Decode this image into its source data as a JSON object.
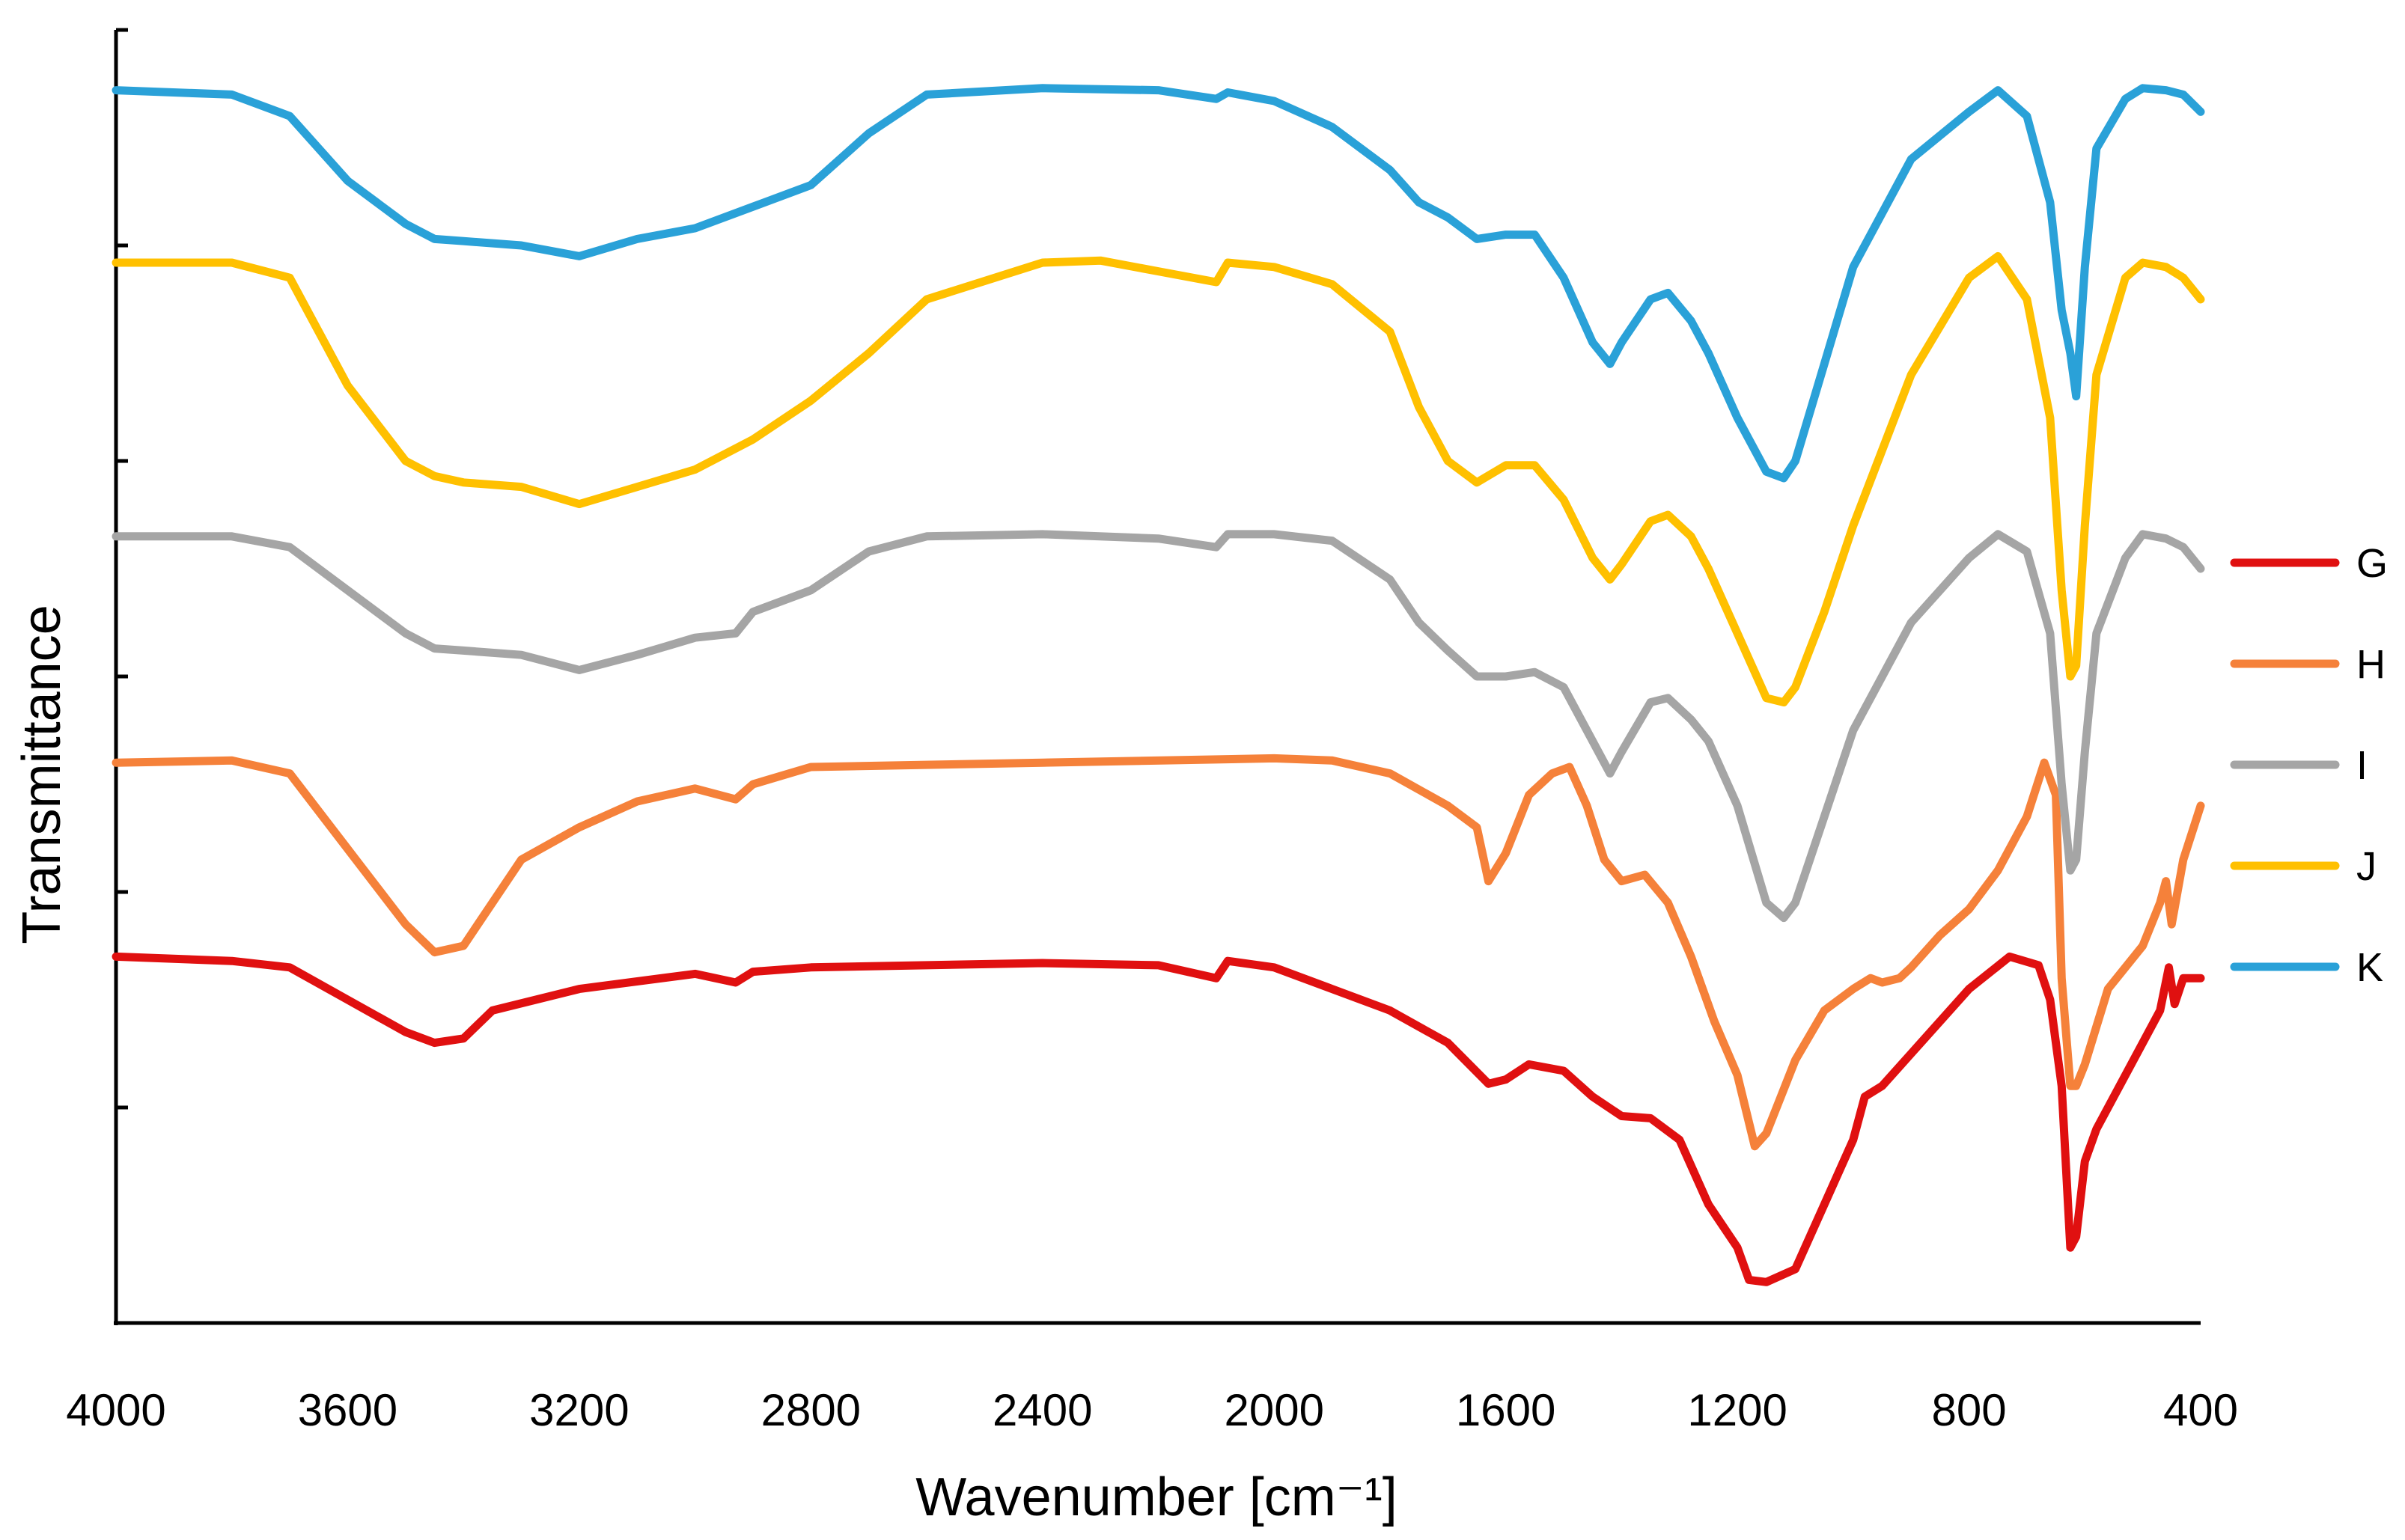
{
  "chart_data": {
    "type": "line",
    "title": "",
    "xlabel": "Wavenumber [cm⁻¹]",
    "ylabel": "Transmittance",
    "xlim": [
      4000,
      400
    ],
    "x_reversed": true,
    "ylim": [
      0,
      6
    ],
    "y_ticks": [
      0,
      1,
      2,
      3,
      4,
      5,
      6
    ],
    "y_tick_labels_visible": false,
    "x_ticks": [
      4000,
      3600,
      3200,
      2800,
      2400,
      2000,
      1600,
      1200,
      800,
      400
    ],
    "x_tick_labels": [
      "4000",
      "3600",
      "3200",
      "2800",
      "2400",
      "2000",
      "1600",
      "1200",
      "800",
      "400"
    ],
    "grid": false,
    "legend_position": "right",
    "series": [
      {
        "name": "G",
        "color": "#e01010",
        "points": [
          [
            4000,
            1.7
          ],
          [
            3800,
            1.68
          ],
          [
            3700,
            1.65
          ],
          [
            3600,
            1.5
          ],
          [
            3500,
            1.35
          ],
          [
            3450,
            1.3
          ],
          [
            3400,
            1.32
          ],
          [
            3350,
            1.45
          ],
          [
            3200,
            1.55
          ],
          [
            3000,
            1.62
          ],
          [
            2930,
            1.58
          ],
          [
            2900,
            1.63
          ],
          [
            2800,
            1.65
          ],
          [
            2400,
            1.67
          ],
          [
            2200,
            1.66
          ],
          [
            2100,
            1.6
          ],
          [
            2080,
            1.68
          ],
          [
            2000,
            1.65
          ],
          [
            1900,
            1.55
          ],
          [
            1800,
            1.45
          ],
          [
            1700,
            1.3
          ],
          [
            1630,
            1.11
          ],
          [
            1600,
            1.13
          ],
          [
            1560,
            1.2
          ],
          [
            1500,
            1.17
          ],
          [
            1450,
            1.05
          ],
          [
            1400,
            0.96
          ],
          [
            1350,
            0.95
          ],
          [
            1300,
            0.85
          ],
          [
            1250,
            0.55
          ],
          [
            1200,
            0.35
          ],
          [
            1180,
            0.2
          ],
          [
            1150,
            0.19
          ],
          [
            1100,
            0.25
          ],
          [
            1050,
            0.55
          ],
          [
            1000,
            0.85
          ],
          [
            980,
            1.05
          ],
          [
            950,
            1.1
          ],
          [
            900,
            1.25
          ],
          [
            800,
            1.55
          ],
          [
            730,
            1.7
          ],
          [
            680,
            1.66
          ],
          [
            660,
            1.5
          ],
          [
            640,
            1.1
          ],
          [
            625,
            0.35
          ],
          [
            615,
            0.4
          ],
          [
            600,
            0.75
          ],
          [
            580,
            0.9
          ],
          [
            520,
            1.2
          ],
          [
            470,
            1.45
          ],
          [
            455,
            1.65
          ],
          [
            445,
            1.48
          ],
          [
            430,
            1.6
          ],
          [
            400,
            1.6
          ]
        ]
      },
      {
        "name": "H",
        "color": "#f5813a",
        "points": [
          [
            4000,
            2.6
          ],
          [
            3800,
            2.61
          ],
          [
            3700,
            2.55
          ],
          [
            3600,
            2.2
          ],
          [
            3500,
            1.85
          ],
          [
            3450,
            1.72
          ],
          [
            3400,
            1.75
          ],
          [
            3350,
            1.95
          ],
          [
            3300,
            2.15
          ],
          [
            3200,
            2.3
          ],
          [
            3100,
            2.42
          ],
          [
            3000,
            2.48
          ],
          [
            2930,
            2.43
          ],
          [
            2900,
            2.5
          ],
          [
            2800,
            2.58
          ],
          [
            2400,
            2.6
          ],
          [
            2000,
            2.62
          ],
          [
            1900,
            2.61
          ],
          [
            1800,
            2.55
          ],
          [
            1700,
            2.4
          ],
          [
            1650,
            2.3
          ],
          [
            1630,
            2.05
          ],
          [
            1600,
            2.18
          ],
          [
            1560,
            2.45
          ],
          [
            1520,
            2.55
          ],
          [
            1490,
            2.58
          ],
          [
            1460,
            2.4
          ],
          [
            1430,
            2.15
          ],
          [
            1400,
            2.05
          ],
          [
            1360,
            2.08
          ],
          [
            1320,
            1.95
          ],
          [
            1280,
            1.7
          ],
          [
            1240,
            1.4
          ],
          [
            1200,
            1.15
          ],
          [
            1170,
            0.82
          ],
          [
            1150,
            0.88
          ],
          [
            1100,
            1.22
          ],
          [
            1050,
            1.45
          ],
          [
            1000,
            1.55
          ],
          [
            970,
            1.6
          ],
          [
            950,
            1.58
          ],
          [
            920,
            1.6
          ],
          [
            900,
            1.65
          ],
          [
            850,
            1.8
          ],
          [
            800,
            1.92
          ],
          [
            750,
            2.1
          ],
          [
            700,
            2.35
          ],
          [
            670,
            2.6
          ],
          [
            650,
            2.45
          ],
          [
            640,
            1.6
          ],
          [
            625,
            1.1
          ],
          [
            615,
            1.1
          ],
          [
            600,
            1.2
          ],
          [
            560,
            1.55
          ],
          [
            500,
            1.75
          ],
          [
            470,
            1.95
          ],
          [
            460,
            2.05
          ],
          [
            450,
            1.85
          ],
          [
            430,
            2.15
          ],
          [
            400,
            2.4
          ]
        ]
      },
      {
        "name": "I",
        "color": "#a5a5a5",
        "points": [
          [
            4000,
            3.65
          ],
          [
            3800,
            3.65
          ],
          [
            3700,
            3.6
          ],
          [
            3600,
            3.4
          ],
          [
            3500,
            3.2
          ],
          [
            3450,
            3.13
          ],
          [
            3400,
            3.12
          ],
          [
            3300,
            3.1
          ],
          [
            3200,
            3.03
          ],
          [
            3100,
            3.1
          ],
          [
            3000,
            3.18
          ],
          [
            2930,
            3.2
          ],
          [
            2900,
            3.3
          ],
          [
            2800,
            3.4
          ],
          [
            2700,
            3.58
          ],
          [
            2600,
            3.65
          ],
          [
            2400,
            3.66
          ],
          [
            2200,
            3.64
          ],
          [
            2100,
            3.6
          ],
          [
            2080,
            3.66
          ],
          [
            2000,
            3.66
          ],
          [
            1900,
            3.63
          ],
          [
            1800,
            3.45
          ],
          [
            1750,
            3.25
          ],
          [
            1700,
            3.12
          ],
          [
            1650,
            3.0
          ],
          [
            1600,
            3.0
          ],
          [
            1550,
            3.02
          ],
          [
            1500,
            2.95
          ],
          [
            1450,
            2.7
          ],
          [
            1420,
            2.55
          ],
          [
            1400,
            2.65
          ],
          [
            1350,
            2.88
          ],
          [
            1320,
            2.9
          ],
          [
            1280,
            2.8
          ],
          [
            1250,
            2.7
          ],
          [
            1200,
            2.4
          ],
          [
            1150,
            1.95
          ],
          [
            1120,
            1.88
          ],
          [
            1100,
            1.95
          ],
          [
            1050,
            2.35
          ],
          [
            1000,
            2.75
          ],
          [
            900,
            3.25
          ],
          [
            800,
            3.55
          ],
          [
            750,
            3.66
          ],
          [
            700,
            3.58
          ],
          [
            660,
            3.2
          ],
          [
            640,
            2.5
          ],
          [
            625,
            2.1
          ],
          [
            615,
            2.15
          ],
          [
            600,
            2.65
          ],
          [
            580,
            3.2
          ],
          [
            530,
            3.55
          ],
          [
            500,
            3.66
          ],
          [
            460,
            3.64
          ],
          [
            430,
            3.6
          ],
          [
            400,
            3.5
          ]
        ]
      },
      {
        "name": "J",
        "color": "#ffc000",
        "points": [
          [
            4000,
            4.92
          ],
          [
            3800,
            4.92
          ],
          [
            3700,
            4.85
          ],
          [
            3600,
            4.35
          ],
          [
            3500,
            4.0
          ],
          [
            3450,
            3.93
          ],
          [
            3400,
            3.9
          ],
          [
            3300,
            3.88
          ],
          [
            3200,
            3.8
          ],
          [
            3100,
            3.88
          ],
          [
            3000,
            3.96
          ],
          [
            2900,
            4.1
          ],
          [
            2800,
            4.28
          ],
          [
            2700,
            4.5
          ],
          [
            2600,
            4.75
          ],
          [
            2400,
            4.92
          ],
          [
            2300,
            4.93
          ],
          [
            2200,
            4.88
          ],
          [
            2100,
            4.83
          ],
          [
            2080,
            4.92
          ],
          [
            2000,
            4.9
          ],
          [
            1900,
            4.82
          ],
          [
            1800,
            4.6
          ],
          [
            1750,
            4.25
          ],
          [
            1700,
            4.0
          ],
          [
            1650,
            3.9
          ],
          [
            1600,
            3.98
          ],
          [
            1550,
            3.98
          ],
          [
            1500,
            3.82
          ],
          [
            1450,
            3.55
          ],
          [
            1420,
            3.45
          ],
          [
            1400,
            3.52
          ],
          [
            1350,
            3.72
          ],
          [
            1320,
            3.75
          ],
          [
            1280,
            3.65
          ],
          [
            1250,
            3.5
          ],
          [
            1200,
            3.2
          ],
          [
            1150,
            2.9
          ],
          [
            1120,
            2.88
          ],
          [
            1100,
            2.95
          ],
          [
            1050,
            3.3
          ],
          [
            1000,
            3.7
          ],
          [
            900,
            4.4
          ],
          [
            800,
            4.85
          ],
          [
            750,
            4.95
          ],
          [
            700,
            4.75
          ],
          [
            660,
            4.2
          ],
          [
            640,
            3.4
          ],
          [
            625,
            3.0
          ],
          [
            615,
            3.05
          ],
          [
            600,
            3.7
          ],
          [
            580,
            4.4
          ],
          [
            530,
            4.85
          ],
          [
            500,
            4.92
          ],
          [
            460,
            4.9
          ],
          [
            430,
            4.85
          ],
          [
            400,
            4.75
          ]
        ]
      },
      {
        "name": "K",
        "color": "#2aa1d8",
        "points": [
          [
            4000,
            5.72
          ],
          [
            3800,
            5.7
          ],
          [
            3700,
            5.6
          ],
          [
            3600,
            5.3
          ],
          [
            3500,
            5.1
          ],
          [
            3450,
            5.03
          ],
          [
            3400,
            5.02
          ],
          [
            3300,
            5.0
          ],
          [
            3200,
            4.95
          ],
          [
            3100,
            5.03
          ],
          [
            3000,
            5.08
          ],
          [
            2900,
            5.18
          ],
          [
            2800,
            5.28
          ],
          [
            2700,
            5.52
          ],
          [
            2600,
            5.7
          ],
          [
            2400,
            5.73
          ],
          [
            2200,
            5.72
          ],
          [
            2100,
            5.68
          ],
          [
            2080,
            5.71
          ],
          [
            2000,
            5.67
          ],
          [
            1900,
            5.55
          ],
          [
            1800,
            5.35
          ],
          [
            1750,
            5.2
          ],
          [
            1700,
            5.13
          ],
          [
            1650,
            5.03
          ],
          [
            1600,
            5.05
          ],
          [
            1550,
            5.05
          ],
          [
            1500,
            4.85
          ],
          [
            1450,
            4.55
          ],
          [
            1420,
            4.45
          ],
          [
            1400,
            4.55
          ],
          [
            1350,
            4.75
          ],
          [
            1320,
            4.78
          ],
          [
            1280,
            4.65
          ],
          [
            1250,
            4.5
          ],
          [
            1200,
            4.2
          ],
          [
            1150,
            3.95
          ],
          [
            1120,
            3.92
          ],
          [
            1100,
            4.0
          ],
          [
            1050,
            4.45
          ],
          [
            1000,
            4.9
          ],
          [
            900,
            5.4
          ],
          [
            800,
            5.62
          ],
          [
            750,
            5.72
          ],
          [
            700,
            5.6
          ],
          [
            660,
            5.2
          ],
          [
            640,
            4.7
          ],
          [
            625,
            4.5
          ],
          [
            615,
            4.3
          ],
          [
            600,
            4.9
          ],
          [
            580,
            5.45
          ],
          [
            530,
            5.68
          ],
          [
            500,
            5.73
          ],
          [
            460,
            5.72
          ],
          [
            430,
            5.7
          ],
          [
            400,
            5.62
          ]
        ]
      }
    ]
  }
}
